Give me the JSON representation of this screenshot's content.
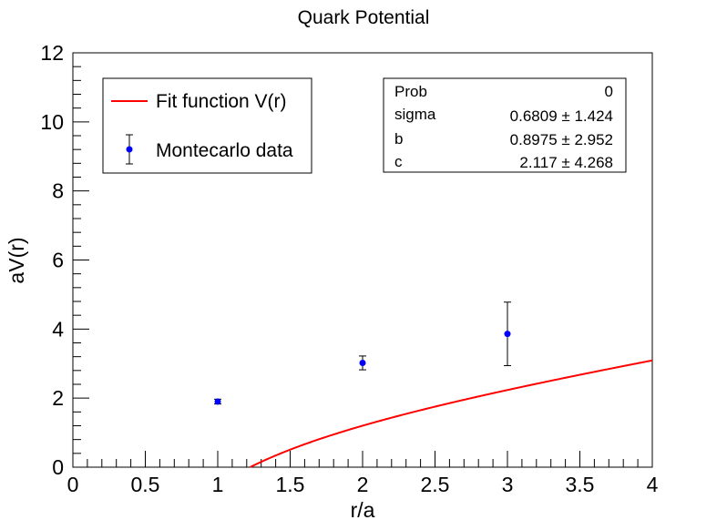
{
  "chart_data": {
    "type": "scatter",
    "title": "Quark Potential",
    "xlabel": "r/a",
    "ylabel": "aV(r)",
    "xlim": [
      0,
      4
    ],
    "ylim": [
      0,
      12
    ],
    "x_ticks": [
      "0",
      "0.5",
      "1",
      "1.5",
      "2",
      "2.5",
      "3",
      "3.5",
      "4"
    ],
    "y_ticks": [
      "0",
      "2",
      "4",
      "6",
      "8",
      "10",
      "12"
    ],
    "series": [
      {
        "name": "Montecarlo data",
        "kind": "points-with-errors",
        "color": "#0000ff",
        "points": [
          {
            "x": 1,
            "y": 1.9,
            "err": 0.07
          },
          {
            "x": 2,
            "y": 3.02,
            "err": 0.2
          },
          {
            "x": 3,
            "y": 3.86,
            "err": 0.92
          }
        ]
      },
      {
        "name": "Fit function V(r)",
        "kind": "curve",
        "color": "#ff0000",
        "formula": "sigma*r + b - c/r",
        "params": {
          "sigma": 0.6809,
          "b": 0.8975,
          "c": 2.117
        }
      }
    ],
    "legend_position": "top-left",
    "stats_box": {
      "position": "top-right",
      "rows": [
        {
          "label": "Prob",
          "value": "0"
        },
        {
          "label": "sigma",
          "value": "0.6809 ± 1.424"
        },
        {
          "label": "b",
          "value": "0.8975 ± 2.952"
        },
        {
          "label": "c",
          "value": "2.117 ± 4.268"
        }
      ]
    }
  }
}
